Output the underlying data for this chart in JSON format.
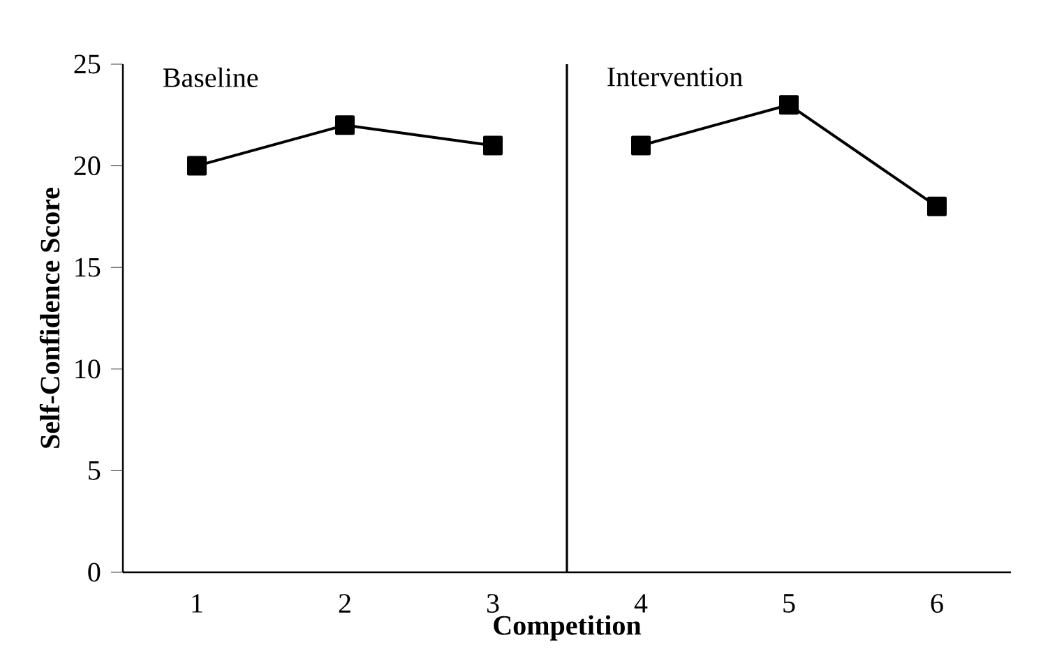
{
  "chart_data": {
    "type": "line",
    "xlabel": "Competition",
    "ylabel": "Self-Confidence Score",
    "xlim": [
      0.5,
      6.5
    ],
    "ylim": [
      0,
      25
    ],
    "xticks": [
      1,
      2,
      3,
      4,
      5,
      6
    ],
    "yticks": [
      0,
      5,
      10,
      15,
      20,
      25
    ],
    "series": [
      {
        "color": "#000000",
        "x": [
          1,
          2,
          3
        ],
        "values": [
          20,
          22,
          21
        ]
      },
      {
        "color": "#000000",
        "x": [
          4,
          5,
          6
        ],
        "values": [
          21,
          23,
          18
        ]
      }
    ],
    "ref_lines": [
      {
        "axis": "x",
        "value": 3.5,
        "color": "#000000"
      }
    ],
    "annotations": [
      "Baseline",
      "Intervention"
    ],
    "marker": "square",
    "line_style": "solid",
    "grid": false
  }
}
